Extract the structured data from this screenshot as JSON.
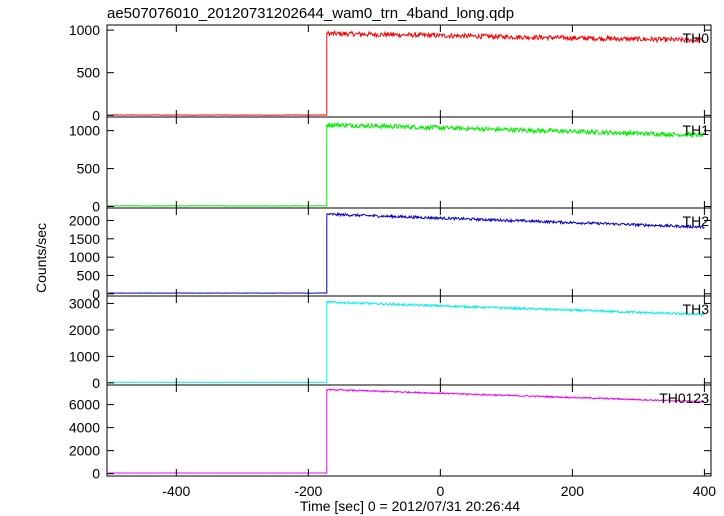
{
  "chart_data": {
    "type": "line",
    "title": "ae507076010_20120731202644_wam0_trn_4band_long.qdp",
    "xlabel": "Time [sec] 0 = 2012/07/31 20:26:44",
    "ylabel": "Counts/sec",
    "xlim": [
      -505,
      410
    ],
    "x_ticks": [
      -400,
      -200,
      0,
      200,
      400
    ],
    "onset_x": -172,
    "end_x": 400,
    "panels": [
      {
        "name": "TH0",
        "color": "#ff0000",
        "ylim": [
          -20,
          1060
        ],
        "yticks": [
          0,
          500,
          1000
        ],
        "pre_level": 3,
        "post_start": 960,
        "post_end": 880,
        "noise": 28
      },
      {
        "name": "TH1",
        "color": "#00ee00",
        "ylim": [
          -20,
          1180
        ],
        "yticks": [
          0,
          500,
          1000
        ],
        "pre_level": 8,
        "post_start": 1080,
        "post_end": 940,
        "noise": 30
      },
      {
        "name": "TH2",
        "color": "#0000cc",
        "ylim": [
          -60,
          2340
        ],
        "yticks": [
          0,
          500,
          1000,
          1500,
          2000
        ],
        "pre_level": 20,
        "post_start": 2170,
        "post_end": 1820,
        "noise": 35
      },
      {
        "name": "TH3",
        "color": "#00eeee",
        "ylim": [
          -80,
          3280
        ],
        "yticks": [
          0,
          1000,
          2000,
          3000
        ],
        "pre_level": 20,
        "post_start": 3050,
        "post_end": 2580,
        "noise": 40
      },
      {
        "name": "TH0123",
        "color": "#ee00ee",
        "ylim": [
          -200,
          7700
        ],
        "yticks": [
          0,
          2000,
          4000,
          6000
        ],
        "pre_level": 60,
        "post_start": 7300,
        "post_end": 6250,
        "noise": 60
      }
    ]
  }
}
